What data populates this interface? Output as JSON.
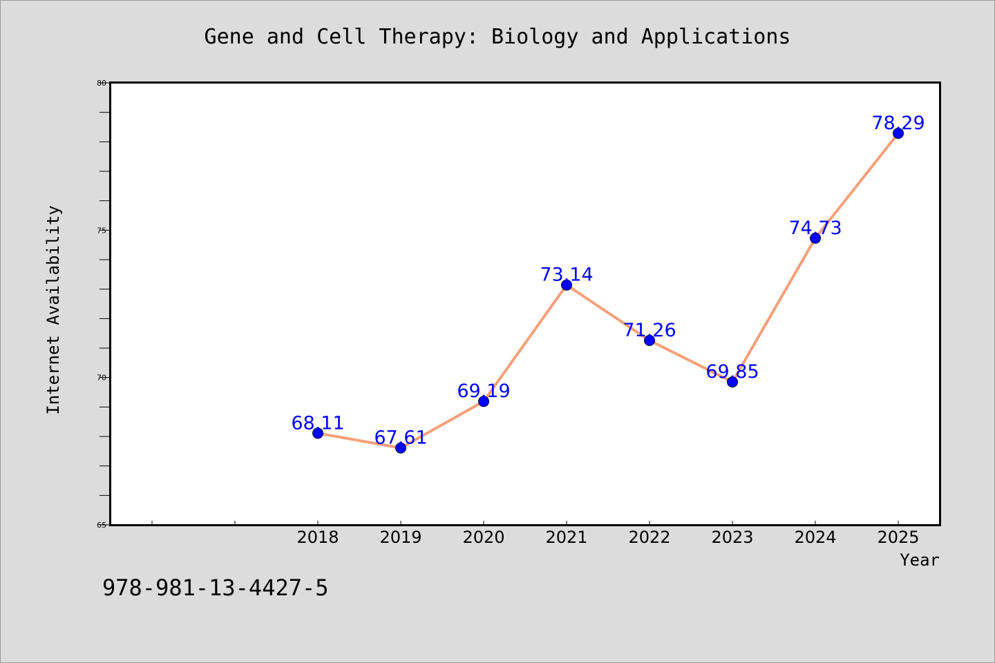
{
  "footer_text": "978-981-13-4427-5",
  "chart_data": {
    "type": "line",
    "title": "Gene and Cell Therapy: Biology and Applications",
    "xlabel": "Year",
    "ylabel": "Internet Availability",
    "x": [
      "2018",
      "2019",
      "2020",
      "2021",
      "2022",
      "2023",
      "2024",
      "2025"
    ],
    "series": [
      {
        "values": [
          68.11,
          67.61,
          69.19,
          73.14,
          71.26,
          69.85,
          74.73,
          78.29
        ],
        "labels": [
          "68.11",
          "67.61",
          "69.19",
          "73.14",
          "71.26",
          "69.85",
          "74.73",
          "78.29"
        ],
        "line_color": "#f4a07a",
        "marker_color": "#0000ff"
      }
    ],
    "ylim": [
      65,
      80
    ],
    "yticks": [
      "65",
      "70",
      "75",
      "80"
    ],
    "grid": false,
    "legend": "none"
  }
}
